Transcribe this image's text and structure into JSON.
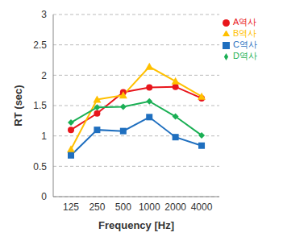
{
  "chart_data": {
    "type": "line",
    "x_label": "Frequency [Hz]",
    "y_label": "RT (sec)",
    "categories": [
      "125",
      "250",
      "500",
      "1000",
      "2000",
      "4000"
    ],
    "series": [
      {
        "name": "A역사",
        "color": "#e8151b",
        "marker": "circle",
        "values": [
          1.1,
          1.37,
          1.72,
          1.8,
          1.81,
          1.62
        ]
      },
      {
        "name": "B역사",
        "color": "#ffc000",
        "marker": "triangle",
        "values": [
          0.78,
          1.6,
          1.67,
          2.14,
          1.9,
          1.65
        ]
      },
      {
        "name": "C역사",
        "color": "#1f6fbf",
        "marker": "square",
        "values": [
          0.68,
          1.1,
          1.08,
          1.31,
          0.98,
          0.84
        ]
      },
      {
        "name": "D역사",
        "color": "#1aaf54",
        "marker": "diamond",
        "values": [
          1.22,
          1.47,
          1.48,
          1.57,
          1.32,
          1.01
        ]
      }
    ],
    "ylim": [
      0,
      3
    ],
    "yticks": [
      0,
      0.5,
      1,
      1.5,
      2,
      2.5,
      3
    ],
    "grid": true,
    "legend": "top-right"
  }
}
